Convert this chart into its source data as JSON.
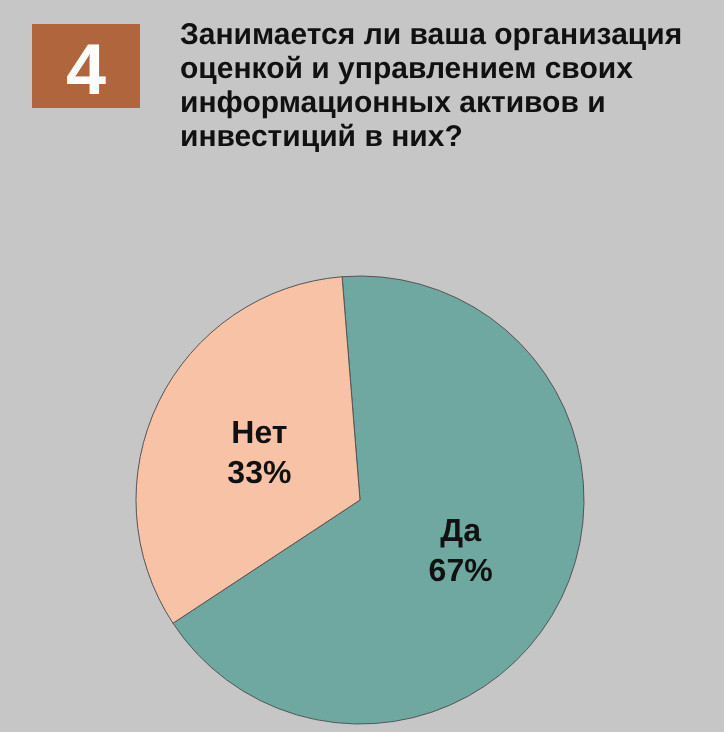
{
  "chart_data": {
    "type": "pie",
    "title": "Занимается ли ваша организация оценкой и управлением своих информационных активов и инвестиций в них?",
    "annotations": [
      "4"
    ],
    "categories": [
      "Да",
      "Нет"
    ],
    "values": [
      67,
      33
    ],
    "value_labels": [
      "67%",
      "33%"
    ],
    "colors": [
      "#6fa8a0",
      "#f7c2a6"
    ]
  }
}
